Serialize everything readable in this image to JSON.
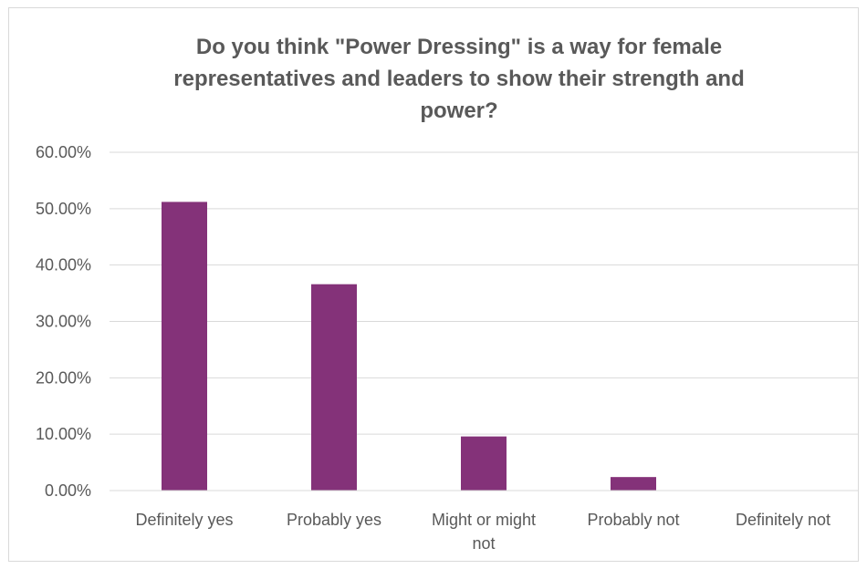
{
  "chart_data": {
    "type": "bar",
    "title_lines": [
      "Do you think \"Power Dressing\" is a way for female",
      "representatives and leaders to show their strength and",
      "power?"
    ],
    "categories": [
      [
        "Definitely yes"
      ],
      [
        "Probably yes"
      ],
      [
        "Might or might",
        "not"
      ],
      [
        "Probably not"
      ],
      [
        "Definitely not"
      ]
    ],
    "values": [
      0.512,
      0.366,
      0.096,
      0.024,
      0.0
    ],
    "ylim": [
      0,
      0.6
    ],
    "yticks": [
      0,
      0.1,
      0.2,
      0.3,
      0.4,
      0.5,
      0.6
    ],
    "ytick_labels": [
      "0.00%",
      "10.00%",
      "20.00%",
      "30.00%",
      "40.00%",
      "50.00%",
      "60.00%"
    ],
    "grid": true,
    "bar_color": "#843279",
    "grid_color": "#d9d9d9",
    "text_color": "#595959"
  }
}
